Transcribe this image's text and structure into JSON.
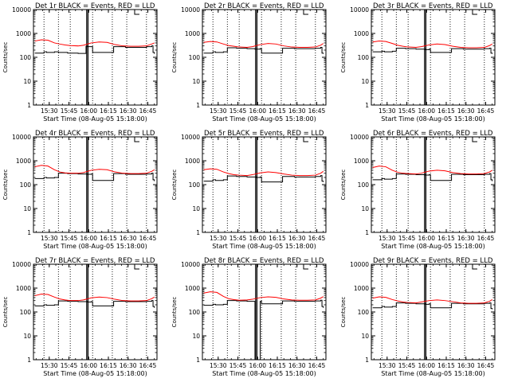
{
  "chart_data": [
    {
      "type": "line",
      "title": "Det 1r BLACK = Events, RED = LLD",
      "xlabel": "Start Time (08-Aug-05 15:18:00)",
      "ylabel": "Counts/sec",
      "y_scale": "log",
      "ylim": [
        1,
        10000
      ],
      "y_ticks": [
        "1",
        "10",
        "100",
        "1000",
        "10000"
      ],
      "x_ticks": [
        "15:30",
        "15:45",
        "16:00",
        "16:15",
        "16:30",
        "16:45"
      ],
      "x_tick_times": [
        30,
        45,
        60,
        75,
        90,
        105
      ],
      "xlim": [
        18,
        112
      ],
      "series": [
        {
          "name": "Events",
          "color": "#000000",
          "x": [
            19,
            26,
            28,
            34,
            37,
            44,
            52,
            58,
            59,
            62,
            63,
            78,
            79,
            88,
            96,
            104,
            108,
            109,
            110
          ],
          "y": [
            150,
            170,
            160,
            170,
            160,
            150,
            145,
            290,
            280,
            280,
            160,
            160,
            280,
            260,
            260,
            280,
            300,
            160,
            140
          ]
        },
        {
          "name": "LLD",
          "color": "#ff0000",
          "x": [
            19,
            24,
            29,
            34,
            38,
            42,
            46,
            52,
            56,
            62,
            68,
            74,
            80,
            86,
            92,
            98,
            104,
            108,
            110
          ],
          "y": [
            480,
            540,
            520,
            400,
            360,
            330,
            310,
            300,
            320,
            400,
            440,
            420,
            340,
            300,
            290,
            290,
            300,
            360,
            400
          ]
        }
      ]
    },
    {
      "type": "line",
      "title": "Det 2r BLACK = Events, RED = LLD",
      "xlabel": "Start Time (08-Aug-05 15:18:00)",
      "ylabel": "Counts/sec",
      "y_scale": "log",
      "ylim": [
        1,
        10000
      ],
      "y_ticks": [
        "1",
        "10",
        "100",
        "1000",
        "10000"
      ],
      "x_ticks": [
        "15:30",
        "15:45",
        "16:00",
        "16:15",
        "16:30",
        "16:45"
      ],
      "x_tick_times": [
        30,
        45,
        60,
        75,
        90,
        105
      ],
      "xlim": [
        18,
        112
      ],
      "series": [
        {
          "name": "Events",
          "color": "#000000",
          "x": [
            19,
            26,
            28,
            34,
            37,
            44,
            52,
            58,
            59,
            62,
            63,
            78,
            79,
            88,
            96,
            104,
            108,
            109,
            110
          ],
          "y": [
            150,
            170,
            160,
            170,
            250,
            240,
            230,
            220,
            220,
            230,
            150,
            150,
            240,
            230,
            230,
            240,
            260,
            150,
            140
          ]
        },
        {
          "name": "LLD",
          "color": "#ff0000",
          "x": [
            19,
            24,
            29,
            34,
            38,
            42,
            46,
            52,
            56,
            62,
            68,
            74,
            80,
            86,
            92,
            98,
            104,
            108,
            110
          ],
          "y": [
            420,
            460,
            440,
            360,
            310,
            290,
            270,
            260,
            280,
            340,
            380,
            360,
            300,
            270,
            260,
            260,
            270,
            320,
            380
          ]
        }
      ]
    },
    {
      "type": "line",
      "title": "Det 3r BLACK = Events, RED = LLD",
      "xlabel": "Start Time (08-Aug-05 15:18:00)",
      "ylabel": "Counts/sec",
      "y_scale": "log",
      "ylim": [
        1,
        10000
      ],
      "y_ticks": [
        "1",
        "10",
        "100",
        "1000",
        "10000"
      ],
      "x_ticks": [
        "15:30",
        "15:45",
        "16:00",
        "16:15",
        "16:30",
        "16:45"
      ],
      "x_tick_times": [
        30,
        45,
        60,
        75,
        90,
        105
      ],
      "xlim": [
        18,
        112
      ],
      "series": [
        {
          "name": "Events",
          "color": "#000000",
          "x": [
            19,
            26,
            28,
            34,
            37,
            44,
            52,
            58,
            59,
            62,
            63,
            78,
            79,
            88,
            96,
            104,
            108,
            109,
            110
          ],
          "y": [
            170,
            180,
            170,
            180,
            240,
            230,
            220,
            220,
            210,
            220,
            160,
            160,
            230,
            220,
            220,
            230,
            240,
            150,
            140
          ]
        },
        {
          "name": "LLD",
          "color": "#ff0000",
          "x": [
            19,
            24,
            29,
            34,
            38,
            42,
            46,
            52,
            56,
            62,
            68,
            74,
            80,
            86,
            92,
            98,
            104,
            108,
            110
          ],
          "y": [
            440,
            480,
            460,
            380,
            320,
            290,
            270,
            260,
            280,
            330,
            360,
            340,
            290,
            260,
            250,
            250,
            260,
            310,
            360
          ]
        }
      ]
    },
    {
      "type": "line",
      "title": "Det 4r BLACK = Events, RED = LLD",
      "xlabel": "Start Time (08-Aug-05 15:18:00)",
      "ylabel": "Counts/sec",
      "y_scale": "log",
      "ylim": [
        1,
        10000
      ],
      "y_ticks": [
        "1",
        "10",
        "100",
        "1000",
        "10000"
      ],
      "x_ticks": [
        "15:30",
        "15:45",
        "16:00",
        "16:15",
        "16:30",
        "16:45"
      ],
      "x_tick_times": [
        30,
        45,
        60,
        75,
        90,
        105
      ],
      "xlim": [
        18,
        112
      ],
      "series": [
        {
          "name": "Events",
          "color": "#000000",
          "x": [
            19,
            26,
            28,
            34,
            37,
            44,
            52,
            58,
            59,
            62,
            63,
            78,
            79,
            88,
            96,
            104,
            108,
            109,
            110
          ],
          "y": [
            180,
            200,
            190,
            200,
            300,
            290,
            280,
            280,
            270,
            280,
            150,
            150,
            290,
            270,
            270,
            280,
            300,
            160,
            140
          ]
        },
        {
          "name": "LLD",
          "color": "#ff0000",
          "x": [
            19,
            24,
            29,
            34,
            38,
            42,
            46,
            52,
            56,
            62,
            68,
            74,
            80,
            86,
            92,
            98,
            104,
            108,
            110
          ],
          "y": [
            560,
            640,
            600,
            420,
            340,
            310,
            300,
            300,
            320,
            400,
            440,
            420,
            340,
            300,
            290,
            290,
            300,
            360,
            420
          ]
        }
      ]
    },
    {
      "type": "line",
      "title": "Det 5r BLACK = Events, RED = LLD",
      "xlabel": "Start Time (08-Aug-05 15:18:00)",
      "ylabel": "Counts/sec",
      "y_scale": "log",
      "ylim": [
        1,
        10000
      ],
      "y_ticks": [
        "1",
        "10",
        "100",
        "1000",
        "10000"
      ],
      "x_ticks": [
        "15:30",
        "15:45",
        "16:00",
        "16:15",
        "16:30",
        "16:45"
      ],
      "x_tick_times": [
        30,
        45,
        60,
        75,
        90,
        105
      ],
      "xlim": [
        18,
        112
      ],
      "series": [
        {
          "name": "Events",
          "color": "#000000",
          "x": [
            19,
            26,
            28,
            34,
            37,
            44,
            52,
            58,
            59,
            62,
            63,
            78,
            79,
            88,
            96,
            104,
            108,
            109,
            110
          ],
          "y": [
            140,
            160,
            150,
            160,
            230,
            220,
            210,
            210,
            200,
            210,
            130,
            130,
            220,
            210,
            210,
            220,
            240,
            140,
            130
          ]
        },
        {
          "name": "LLD",
          "color": "#ff0000",
          "x": [
            19,
            24,
            29,
            34,
            38,
            42,
            46,
            52,
            56,
            62,
            68,
            74,
            80,
            86,
            92,
            98,
            104,
            108,
            110
          ],
          "y": [
            420,
            460,
            440,
            340,
            290,
            260,
            250,
            240,
            260,
            310,
            340,
            320,
            280,
            250,
            240,
            240,
            250,
            300,
            360
          ]
        }
      ]
    },
    {
      "type": "line",
      "title": "Det 6r BLACK = Events, RED = LLD",
      "xlabel": "Start Time (08-Aug-05 15:18:00)",
      "ylabel": "Counts/sec",
      "y_scale": "log",
      "ylim": [
        1,
        10000
      ],
      "y_ticks": [
        "1",
        "10",
        "100",
        "1000",
        "10000"
      ],
      "x_ticks": [
        "15:30",
        "15:45",
        "16:00",
        "16:15",
        "16:30",
        "16:45"
      ],
      "x_tick_times": [
        30,
        45,
        60,
        75,
        90,
        105
      ],
      "xlim": [
        18,
        112
      ],
      "series": [
        {
          "name": "Events",
          "color": "#000000",
          "x": [
            19,
            26,
            28,
            34,
            37,
            44,
            52,
            58,
            59,
            62,
            63,
            78,
            79,
            88,
            96,
            104,
            108,
            109,
            110
          ],
          "y": [
            160,
            180,
            170,
            180,
            280,
            270,
            260,
            260,
            250,
            260,
            150,
            150,
            270,
            260,
            260,
            270,
            290,
            160,
            140
          ]
        },
        {
          "name": "LLD",
          "color": "#ff0000",
          "x": [
            19,
            24,
            29,
            34,
            38,
            42,
            46,
            52,
            56,
            62,
            68,
            74,
            80,
            86,
            92,
            98,
            104,
            108,
            110
          ],
          "y": [
            520,
            600,
            560,
            400,
            330,
            300,
            290,
            280,
            300,
            370,
            400,
            380,
            320,
            290,
            280,
            280,
            290,
            340,
            400
          ]
        }
      ]
    },
    {
      "type": "line",
      "title": "Det 7r BLACK = Events, RED = LLD",
      "xlabel": "Start Time (08-Aug-05 15:18:00)",
      "ylabel": "Counts/sec",
      "y_scale": "log",
      "ylim": [
        1,
        10000
      ],
      "y_ticks": [
        "1",
        "10",
        "100",
        "1000",
        "10000"
      ],
      "x_ticks": [
        "15:30",
        "15:45",
        "16:00",
        "16:15",
        "16:30",
        "16:45"
      ],
      "x_tick_times": [
        30,
        45,
        60,
        75,
        90,
        105
      ],
      "xlim": [
        18,
        112
      ],
      "series": [
        {
          "name": "Events",
          "color": "#000000",
          "x": [
            19,
            26,
            28,
            34,
            37,
            44,
            52,
            58,
            59,
            62,
            63,
            78,
            79,
            88,
            96,
            104,
            108,
            109,
            110
          ],
          "y": [
            180,
            200,
            190,
            200,
            290,
            280,
            270,
            270,
            260,
            270,
            180,
            180,
            280,
            270,
            270,
            280,
            300,
            170,
            150
          ]
        },
        {
          "name": "LLD",
          "color": "#ff0000",
          "x": [
            19,
            24,
            29,
            34,
            38,
            42,
            46,
            52,
            56,
            62,
            68,
            74,
            80,
            86,
            92,
            98,
            104,
            108,
            110
          ],
          "y": [
            480,
            560,
            540,
            420,
            350,
            320,
            300,
            300,
            320,
            390,
            420,
            400,
            340,
            300,
            290,
            290,
            300,
            360,
            420
          ]
        }
      ]
    },
    {
      "type": "line",
      "title": "Det 8r BLACK = Events, RED = LLD",
      "xlabel": "Start Time (08-Aug-05 15:18:00)",
      "ylabel": "Counts/sec",
      "y_scale": "log",
      "ylim": [
        1,
        10000
      ],
      "y_ticks": [
        "1",
        "10",
        "100",
        "1000",
        "10000"
      ],
      "x_ticks": [
        "15:30",
        "15:45",
        "16:00",
        "16:15",
        "16:30",
        "16:45"
      ],
      "x_tick_times": [
        30,
        45,
        60,
        75,
        90,
        105
      ],
      "xlim": [
        18,
        112
      ],
      "series": [
        {
          "name": "Events",
          "color": "#000000",
          "x": [
            19,
            26,
            28,
            34,
            37,
            44,
            52,
            58,
            59,
            62,
            63,
            78,
            79,
            88,
            96,
            104,
            108,
            109,
            110
          ],
          "y": [
            190,
            210,
            200,
            210,
            300,
            290,
            280,
            1,
            1,
            280,
            220,
            220,
            290,
            280,
            280,
            290,
            310,
            170,
            150
          ]
        },
        {
          "name": "LLD",
          "color": "#ff0000",
          "x": [
            19,
            24,
            29,
            34,
            38,
            42,
            46,
            52,
            56,
            62,
            68,
            74,
            80,
            86,
            92,
            98,
            104,
            108,
            110
          ],
          "y": [
            620,
            700,
            660,
            450,
            360,
            330,
            310,
            320,
            340,
            400,
            430,
            410,
            350,
            320,
            310,
            310,
            320,
            380,
            440
          ]
        }
      ]
    },
    {
      "type": "line",
      "title": "Det 9r BLACK = Events, RED = LLD",
      "xlabel": "Start Time (08-Aug-05 15:18:00)",
      "ylabel": "Counts/sec",
      "y_scale": "log",
      "ylim": [
        1,
        10000
      ],
      "y_ticks": [
        "1",
        "10",
        "100",
        "1000",
        "10000"
      ],
      "x_ticks": [
        "15:30",
        "15:45",
        "16:00",
        "16:15",
        "16:30",
        "16:45"
      ],
      "x_tick_times": [
        30,
        45,
        60,
        75,
        90,
        105
      ],
      "xlim": [
        18,
        112
      ],
      "series": [
        {
          "name": "Events",
          "color": "#000000",
          "x": [
            19,
            26,
            28,
            34,
            37,
            44,
            52,
            58,
            59,
            62,
            63,
            78,
            79,
            88,
            96,
            104,
            108,
            109,
            110
          ],
          "y": [
            150,
            170,
            160,
            170,
            240,
            230,
            220,
            220,
            210,
            220,
            150,
            150,
            230,
            220,
            220,
            230,
            240,
            140,
            130
          ]
        },
        {
          "name": "LLD",
          "color": "#ff0000",
          "x": [
            19,
            24,
            29,
            34,
            38,
            42,
            46,
            52,
            56,
            62,
            68,
            74,
            80,
            86,
            92,
            98,
            104,
            108,
            110
          ],
          "y": [
            380,
            430,
            410,
            330,
            290,
            260,
            250,
            240,
            260,
            300,
            320,
            300,
            270,
            240,
            230,
            230,
            240,
            280,
            330
          ]
        }
      ]
    }
  ],
  "markers": {
    "dotted_times": [
      26,
      37,
      46,
      63,
      78,
      89,
      104
    ],
    "solid_times": [
      58.5,
      59.5
    ]
  }
}
